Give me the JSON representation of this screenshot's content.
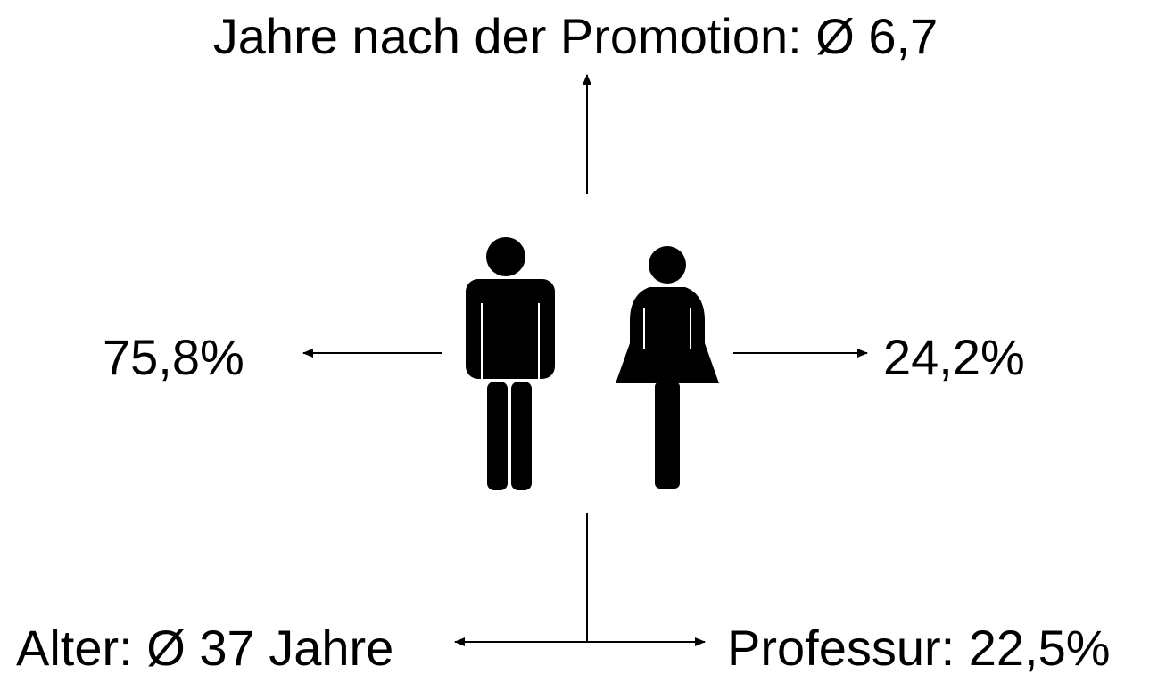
{
  "top_label": "Jahre nach der Promotion: Ø 6,7",
  "left_label": "75,8%",
  "right_label": "24,2%",
  "bottom_left_label": "Alter: Ø 37 Jahre",
  "bottom_right_label": "Professur: 22,5%"
}
